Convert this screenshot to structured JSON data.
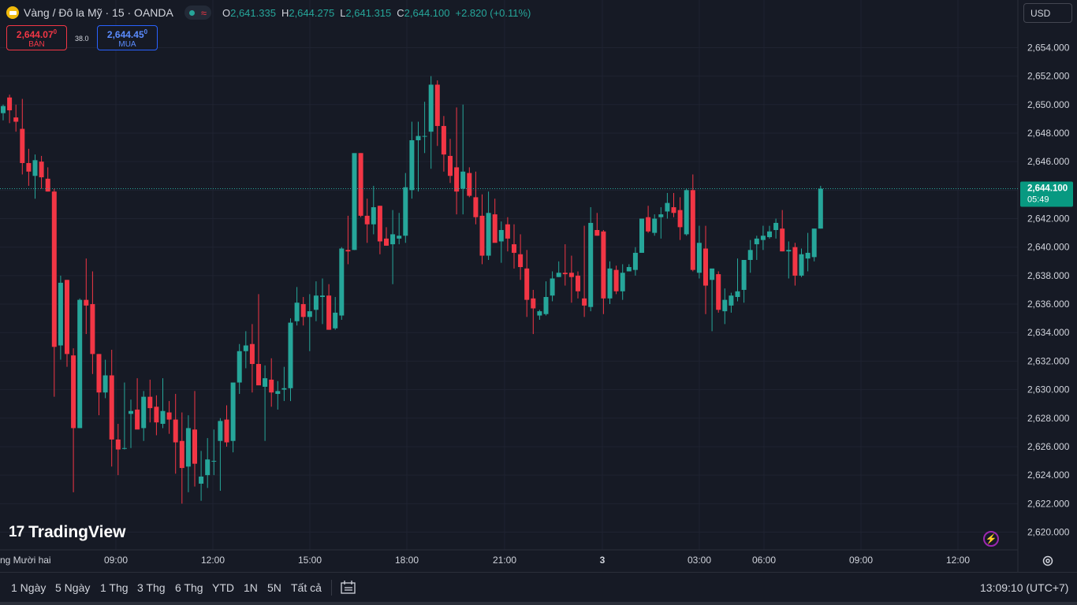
{
  "header": {
    "symbol_title": "Vàng / Đô la Mỹ · 15 · OANDA",
    "ohlc": {
      "o_label": "O",
      "o": "2,641.335",
      "h_label": "H",
      "h": "2,644.275",
      "l_label": "L",
      "l": "2,641.315",
      "c_label": "C",
      "c": "2,644.100",
      "change": "+2.820 (+0.11%)"
    }
  },
  "trade": {
    "sell_price": "2,644.07",
    "sell_price_sup": "0",
    "sell_label": "BÁN",
    "spread": "38.0",
    "buy_price": "2,644.45",
    "buy_price_sup": "0",
    "buy_label": "MUA"
  },
  "currency_selector": "USD",
  "price_scale": {
    "labels": [
      "2,654.000",
      "2,652.000",
      "2,650.000",
      "2,648.000",
      "2,646.000",
      "2,644.000",
      "2,642.000",
      "2,640.000",
      "2,638.000",
      "2,636.000",
      "2,634.000",
      "2,632.000",
      "2,630.000",
      "2,628.000",
      "2,626.000",
      "2,624.000",
      "2,622.000",
      "2,620.000"
    ],
    "current_price": "2,644.100",
    "countdown": "05:49"
  },
  "time_scale": {
    "labels": [
      "ng Mười hai",
      "09:00",
      "12:00",
      "15:00",
      "18:00",
      "21:00",
      "3",
      "03:00",
      "06:00",
      "09:00",
      "12:00"
    ]
  },
  "branding": {
    "logo_text": "TradingView"
  },
  "bottom_bar": {
    "ranges": [
      "1 Ngày",
      "5 Ngày",
      "1 Thg",
      "3 Thg",
      "6 Thg",
      "YTD",
      "1N",
      "5N",
      "Tất cả"
    ],
    "clock": "13:09:10 (UTC+7)"
  },
  "colors": {
    "up": "#26a69a",
    "down": "#f23645",
    "background": "#161a25",
    "grid": "#1f2331"
  },
  "chart_data": {
    "type": "candlestick",
    "y_axis_range": [
      2619.5,
      2655.0
    ],
    "candles": [
      [
        2649.4,
        2650.0,
        2648.9,
        2649.9
      ],
      [
        2650.5,
        2650.7,
        2648.7,
        2649.6
      ],
      [
        2649.1,
        2650.0,
        2648.1,
        2648.8
      ],
      [
        2648.3,
        2650.4,
        2645.1,
        2645.9
      ],
      [
        2645.9,
        2646.9,
        2644.3,
        2645.3
      ],
      [
        2645.0,
        2646.5,
        2643.4,
        2646.1
      ],
      [
        2646.0,
        2646.4,
        2644.1,
        2644.9
      ],
      [
        2644.8,
        2645.6,
        2643.9,
        2643.9
      ],
      [
        2643.9,
        2644.1,
        2629.5,
        2633.0
      ],
      [
        2633.1,
        2638.0,
        2632.1,
        2637.5
      ],
      [
        2637.7,
        2637.7,
        2631.6,
        2632.5
      ],
      [
        2632.4,
        2632.9,
        2622.8,
        2627.3
      ],
      [
        2627.3,
        2636.4,
        2627.3,
        2636.3
      ],
      [
        2636.3,
        2639.2,
        2633.9,
        2635.9
      ],
      [
        2636.0,
        2638.3,
        2631.1,
        2632.5
      ],
      [
        2632.5,
        2632.5,
        2628.2,
        2629.8
      ],
      [
        2629.8,
        2632.1,
        2629.4,
        2631.0
      ],
      [
        2631.0,
        2632.8,
        2624.6,
        2626.5
      ],
      [
        2626.5,
        2627.6,
        2624.0,
        2625.8
      ],
      [
        2625.9,
        2630.5,
        2625.8
      ],
      [
        2628.3,
        2629.3,
        2625.9,
        2628.5
      ],
      [
        2628.6,
        2630.8,
        2627.9,
        2627.2
      ],
      [
        2627.3,
        2629.9,
        2626.4,
        2629.5
      ],
      [
        2629.5,
        2630.7,
        2627.7,
        2628.7
      ],
      [
        2628.8,
        2629.6,
        2626.8,
        2627.7
      ],
      [
        2627.6,
        2630.8,
        2627.3,
        2628.5
      ],
      [
        2628.4,
        2629.2,
        2626.9,
        2627.9
      ],
      [
        2627.9,
        2629.7,
        2624.1,
        2626.3
      ],
      [
        2626.4,
        2628.4,
        2622.0,
        2624.5
      ],
      [
        2624.6,
        2628.2,
        2622.8,
        2627.3
      ],
      [
        2627.2,
        2629.9,
        2623.2,
        2624.8
      ],
      [
        2623.4,
        2625.7,
        2622.2,
        2623.9
      ],
      [
        2624.0,
        2626.6,
        2623.1,
        2625.1
      ],
      [
        2625.0,
        2627.2,
        2624.0
      ],
      [
        2626.4,
        2628.0,
        2622.9,
        2627.8
      ],
      [
        2627.9,
        2628.9,
        2626.0,
        2626.3
      ],
      [
        2626.4,
        2630.4,
        2625.6,
        2630.5
      ],
      [
        2630.5,
        2633.2,
        2629.7,
        2632.7
      ],
      [
        2632.7,
        2634.1,
        2631.5,
        2633.1
      ],
      [
        2633.2,
        2634.6,
        2629.8,
        2631.8
      ],
      [
        2631.8,
        2636.7,
        2630.6,
        2630.3
      ],
      [
        2630.2,
        2631.7,
        2626.4,
        2630.8
      ],
      [
        2630.7,
        2632.2,
        2628.8,
        2629.8
      ],
      [
        2629.7,
        2630.6,
        2628.6,
        2629.9
      ],
      [
        2630.0,
        2631.6,
        2629.2,
        2630.1
      ],
      [
        2630.1,
        2635.0,
        2629.2,
        2634.7
      ],
      [
        2634.8,
        2637.2,
        2634.5,
        2636.1
      ],
      [
        2636.0,
        2636.5,
        2634.5,
        2635.1
      ],
      [
        2635.1,
        2636.7,
        2632.7,
        2635.5
      ],
      [
        2635.6,
        2637.6,
        2634.8,
        2636.6
      ],
      [
        2636.5,
        2637.8,
        2634.6,
        2636.6
      ],
      [
        2636.6,
        2637.4,
        2634.2,
        2634.2
      ],
      [
        2634.3,
        2636.5,
        2634.2,
        2635.4
      ],
      [
        2635.2,
        2640.0,
        2634.9,
        2639.9
      ],
      [
        2639.8,
        2642.2,
        2638.8,
        2639.7
      ],
      [
        2639.8,
        2646.4,
        2639.8,
        2646.6
      ],
      [
        2646.6,
        2646.6,
        2642.1,
        2642.2
      ],
      [
        2642.2,
        2643.4,
        2640.3,
        2641.6
      ],
      [
        2641.6,
        2644.3,
        2640.9,
        2642.8
      ],
      [
        2642.9,
        2642.9,
        2639.5,
        2640.4
      ],
      [
        2640.6,
        2641.4,
        2640.1,
        2640.1
      ],
      [
        2640.2,
        2642.6,
        2637.4,
        2640.9
      ],
      [
        2640.6,
        2642.4,
        2640.2,
        2640.8
      ],
      [
        2640.8,
        2645.2,
        2640.3,
        2644.2
      ],
      [
        2644.0,
        2648.8,
        2643.4,
        2647.5
      ],
      [
        2647.5,
        2648.8,
        2643.9,
        2647.8
      ],
      [
        2647.8,
        2650.2,
        2646.6,
        2647.8
      ],
      [
        2648.1,
        2652.0,
        2645.5,
        2651.4
      ],
      [
        2651.4,
        2651.7,
        2647.1,
        2648.5
      ],
      [
        2648.5,
        2649.2,
        2645.3,
        2646.5
      ],
      [
        2646.4,
        2647.6,
        2644.5,
        2645.0
      ],
      [
        2645.6,
        2649.8,
        2642.3,
        2643.9
      ],
      [
        2644.1,
        2650.0,
        2642.3,
        2645.3
      ],
      [
        2645.2,
        2645.6,
        2643.5,
        2643.6
      ],
      [
        2643.5,
        2645.3,
        2641.6,
        2642.1
      ],
      [
        2642.2,
        2643.7,
        2638.8,
        2639.4
      ],
      [
        2639.4,
        2643.9,
        2639.1,
        2642.4
      ],
      [
        2642.3,
        2643.4,
        2640.4,
        2640.3
      ],
      [
        2640.4,
        2641.8,
        2638.9,
        2641.2
      ],
      [
        2641.6,
        2642.1,
        2639.7,
        2640.6
      ],
      [
        2640.2,
        2641.6,
        2638.5,
        2639.6
      ],
      [
        2639.5,
        2640.9,
        2637.7,
        2638.6
      ],
      [
        2638.5,
        2639.8,
        2635.1,
        2636.3
      ],
      [
        2636.4,
        2637.0,
        2633.9,
        2635.7
      ],
      [
        2635.2,
        2635.6,
        2634.9,
        2635.5
      ],
      [
        2635.3,
        2637.6,
        2635.2,
        2636.5
      ],
      [
        2636.6,
        2638.3,
        2636.2,
        2637.8
      ],
      [
        2637.9,
        2639.0,
        2637.9,
        2638.2
      ],
      [
        2638.2,
        2640.2,
        2637.3,
        2638.1
      ],
      [
        2638.2,
        2639.4,
        2636.1,
        2637.9
      ],
      [
        2638.0,
        2638.3,
        2636.4,
        2636.9
      ],
      [
        2636.4,
        2641.5,
        2635.1,
        2635.9
      ],
      [
        2635.8,
        2642.8,
        2635.5,
        2641.7
      ],
      [
        2641.2,
        2642.4,
        2640.8,
        2640.8
      ],
      [
        2641.1,
        2641.2,
        2635.3,
        2636.4
      ],
      [
        2636.4,
        2639.0,
        2636.0,
        2638.5
      ],
      [
        2638.4,
        2638.7,
        2636.7,
        2636.9
      ],
      [
        2636.9,
        2638.8,
        2636.3,
        2638.2
      ],
      [
        2638.3,
        2638.8,
        2638.3,
        2638.6
      ],
      [
        2638.4,
        2640.0,
        2638.0,
        2639.6
      ],
      [
        2639.6,
        2642.0,
        2639.6,
        2642.0
      ],
      [
        2642.1,
        2642.9,
        2641.0,
        2641.1
      ],
      [
        2641.0,
        2642.3,
        2640.8,
        2642.0
      ],
      [
        2642.1,
        2642.8,
        2640.6,
        2642.3
      ],
      [
        2642.5,
        2643.8,
        2642.0,
        2643.1
      ],
      [
        2642.8,
        2643.8,
        2642.1,
        2642.4
      ],
      [
        2642.6,
        2643.5,
        2640.5,
        2641.4
      ],
      [
        2640.9,
        2644.1,
        2640.8,
        2644.0
      ],
      [
        2644.0,
        2645.1,
        2638.3,
        2638.4
      ],
      [
        2638.2,
        2641.5,
        2637.8,
        2640.3
      ],
      [
        2639.9,
        2641.5,
        2635.3,
        2637.3
      ],
      [
        2637.7,
        2638.1,
        2634.1,
        2638.5
      ],
      [
        2638.1,
        2638.3,
        2635.4,
        2635.6
      ],
      [
        2635.5,
        2637.1,
        2634.6,
        2636.3
      ],
      [
        2635.9,
        2636.8,
        2635.4,
        2636.6
      ],
      [
        2636.5,
        2639.2,
        2636.2,
        2636.9
      ],
      [
        2637.0,
        2638.4,
        2636.1,
        2639.1
      ],
      [
        2639.1,
        2640.5,
        2638.2,
        2639.8
      ],
      [
        2640.2,
        2640.8,
        2639.1,
        2640.6
      ],
      [
        2640.5,
        2641.5,
        2639.8,
        2640.8
      ],
      [
        2640.7,
        2641.5,
        2640.6,
        2641.1
      ],
      [
        2641.2,
        2642.0,
        2640.6,
        2641.7
      ],
      [
        2641.3,
        2642.6,
        2639.7,
        2639.7
      ],
      [
        2639.7,
        2640.4,
        2637.8,
        2639.8
      ],
      [
        2640.0,
        2640.3,
        2637.3,
        2638.0
      ],
      [
        2638.0,
        2639.9,
        2637.9,
        2639.5
      ],
      [
        2639.2,
        2641.0,
        2638.3,
        2639.6
      ],
      [
        2639.3,
        2641.3,
        2639.0,
        2641.3
      ],
      [
        2641.3,
        2644.3,
        2641.3,
        2644.1
      ]
    ]
  }
}
